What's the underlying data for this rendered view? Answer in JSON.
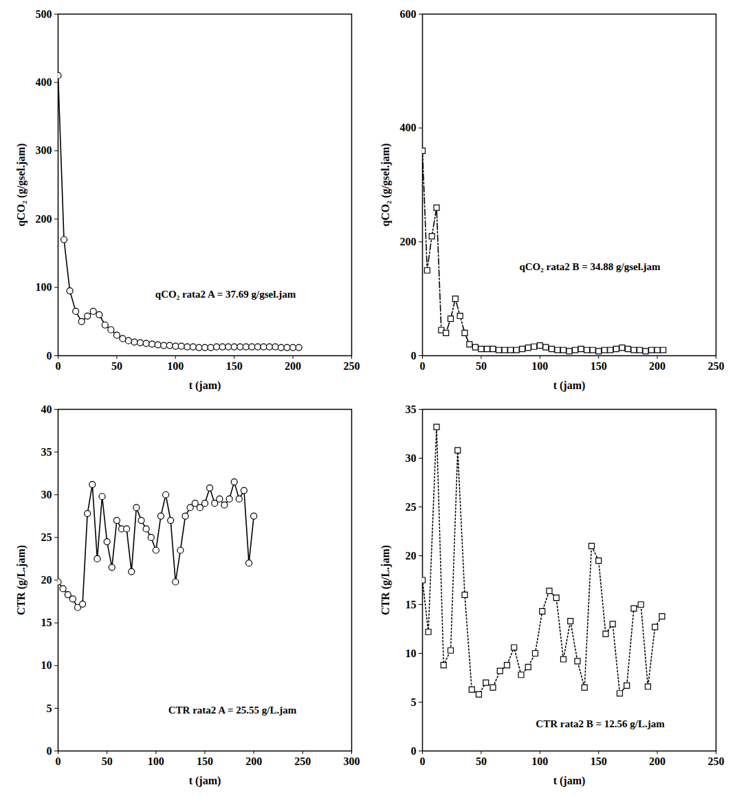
{
  "chart_data": [
    {
      "type": "line",
      "x_label": "t (jam)",
      "y_label": "qCO₂ (g/gsel.jam)",
      "annotation": "qCO₂ rata2 A = 37.69 g/gsel.jam",
      "xlim": [
        0,
        250
      ],
      "xticks": [
        0,
        50,
        100,
        150,
        200,
        250
      ],
      "ylim": [
        0,
        500
      ],
      "yticks": [
        0,
        100,
        200,
        300,
        400,
        500
      ],
      "grid": false,
      "color": "#000000",
      "marker": "circle",
      "line_style": "solid",
      "x": [
        0,
        5,
        10,
        15,
        20,
        25,
        30,
        35,
        40,
        45,
        50,
        55,
        60,
        65,
        70,
        75,
        80,
        85,
        90,
        95,
        100,
        105,
        110,
        115,
        120,
        125,
        130,
        135,
        140,
        145,
        150,
        155,
        160,
        165,
        170,
        175,
        180,
        185,
        190,
        195,
        200,
        205
      ],
      "values": [
        410,
        170,
        95,
        65,
        50,
        58,
        65,
        60,
        45,
        38,
        30,
        25,
        22,
        20,
        19,
        18,
        17,
        16,
        15,
        15,
        14,
        14,
        13,
        13,
        12,
        12,
        12,
        13,
        13,
        13,
        13,
        13,
        13,
        13,
        13,
        13,
        13,
        13,
        12,
        12,
        12,
        12
      ]
    },
    {
      "type": "line",
      "x_label": "t (jam)",
      "y_label": "qCO₂ (g/gsel.jam)",
      "annotation": "qCO₂ rata2 B = 34.88 g/gsel.jam",
      "xlim": [
        0,
        250
      ],
      "xticks": [
        0,
        50,
        100,
        150,
        200,
        250
      ],
      "ylim": [
        0,
        600
      ],
      "yticks": [
        0,
        200,
        400,
        600
      ],
      "grid": false,
      "color": "#000000",
      "marker": "square",
      "line_style": "dashdot",
      "x": [
        0,
        4,
        8,
        12,
        16,
        20,
        24,
        28,
        32,
        36,
        40,
        45,
        50,
        55,
        60,
        65,
        70,
        75,
        80,
        85,
        90,
        95,
        100,
        105,
        110,
        115,
        120,
        125,
        130,
        135,
        140,
        145,
        150,
        155,
        160,
        165,
        170,
        175,
        180,
        185,
        190,
        195,
        200,
        205
      ],
      "values": [
        360,
        150,
        210,
        260,
        45,
        40,
        65,
        100,
        70,
        40,
        20,
        15,
        12,
        12,
        12,
        10,
        10,
        10,
        10,
        12,
        14,
        16,
        18,
        15,
        12,
        10,
        10,
        8,
        10,
        12,
        10,
        10,
        8,
        10,
        10,
        12,
        14,
        12,
        10,
        10,
        8,
        10,
        10,
        10
      ]
    },
    {
      "type": "line",
      "x_label": "t (jam)",
      "y_label": "CTR (g/L.jam)",
      "annotation": "CTR rata2 A = 25.55 g/L.jam",
      "xlim": [
        0,
        300
      ],
      "xticks": [
        0,
        50,
        100,
        150,
        200,
        250,
        300
      ],
      "ylim": [
        0,
        40
      ],
      "yticks": [
        0,
        5,
        10,
        15,
        20,
        25,
        30,
        35,
        40
      ],
      "grid": false,
      "color": "#000000",
      "marker": "circle",
      "line_style": "solid",
      "x": [
        0,
        5,
        10,
        15,
        20,
        25,
        30,
        35,
        40,
        45,
        50,
        55,
        60,
        65,
        70,
        75,
        80,
        85,
        90,
        95,
        100,
        105,
        110,
        115,
        120,
        125,
        130,
        135,
        140,
        145,
        150,
        155,
        160,
        165,
        170,
        175,
        180,
        185,
        190,
        195,
        200
      ],
      "values": [
        19.8,
        19,
        18.3,
        17.8,
        16.8,
        17.2,
        27.8,
        31.2,
        22.5,
        29.8,
        24.5,
        21.5,
        27,
        26,
        26,
        21,
        28.5,
        27,
        26,
        25,
        23.5,
        27.5,
        30,
        27,
        19.8,
        23.5,
        27.5,
        28.5,
        29,
        28.5,
        29,
        30.8,
        29,
        29.5,
        28.8,
        29.5,
        31.5,
        29.5,
        30.5,
        22,
        27.5
      ]
    },
    {
      "type": "line",
      "x_label": "t (jam)",
      "y_label": "CTR (g/L.jam)",
      "annotation": "CTR rata2 B = 12.56 g/L.jam",
      "xlim": [
        0,
        250
      ],
      "xticks": [
        0,
        50,
        100,
        150,
        200,
        250
      ],
      "ylim": [
        0,
        35
      ],
      "yticks": [
        0,
        5,
        10,
        15,
        20,
        25,
        30,
        35
      ],
      "grid": false,
      "color": "#000000",
      "marker": "square",
      "line_style": "dotted",
      "x": [
        0,
        5,
        12,
        18,
        24,
        30,
        36,
        42,
        48,
        54,
        60,
        66,
        72,
        78,
        84,
        90,
        96,
        102,
        108,
        114,
        120,
        126,
        132,
        138,
        144,
        150,
        156,
        162,
        168,
        174,
        180,
        186,
        192,
        198,
        204
      ],
      "values": [
        17.5,
        12.2,
        33.2,
        8.8,
        10.3,
        30.8,
        16,
        6.3,
        5.8,
        7,
        6.5,
        8.2,
        8.8,
        10.6,
        7.8,
        8.6,
        10,
        14.3,
        16.4,
        15.7,
        9.4,
        13.3,
        9.2,
        6.5,
        21,
        19.5,
        12,
        13,
        5.9,
        6.7,
        14.6,
        15,
        6.6,
        12.7,
        13.8
      ]
    }
  ]
}
